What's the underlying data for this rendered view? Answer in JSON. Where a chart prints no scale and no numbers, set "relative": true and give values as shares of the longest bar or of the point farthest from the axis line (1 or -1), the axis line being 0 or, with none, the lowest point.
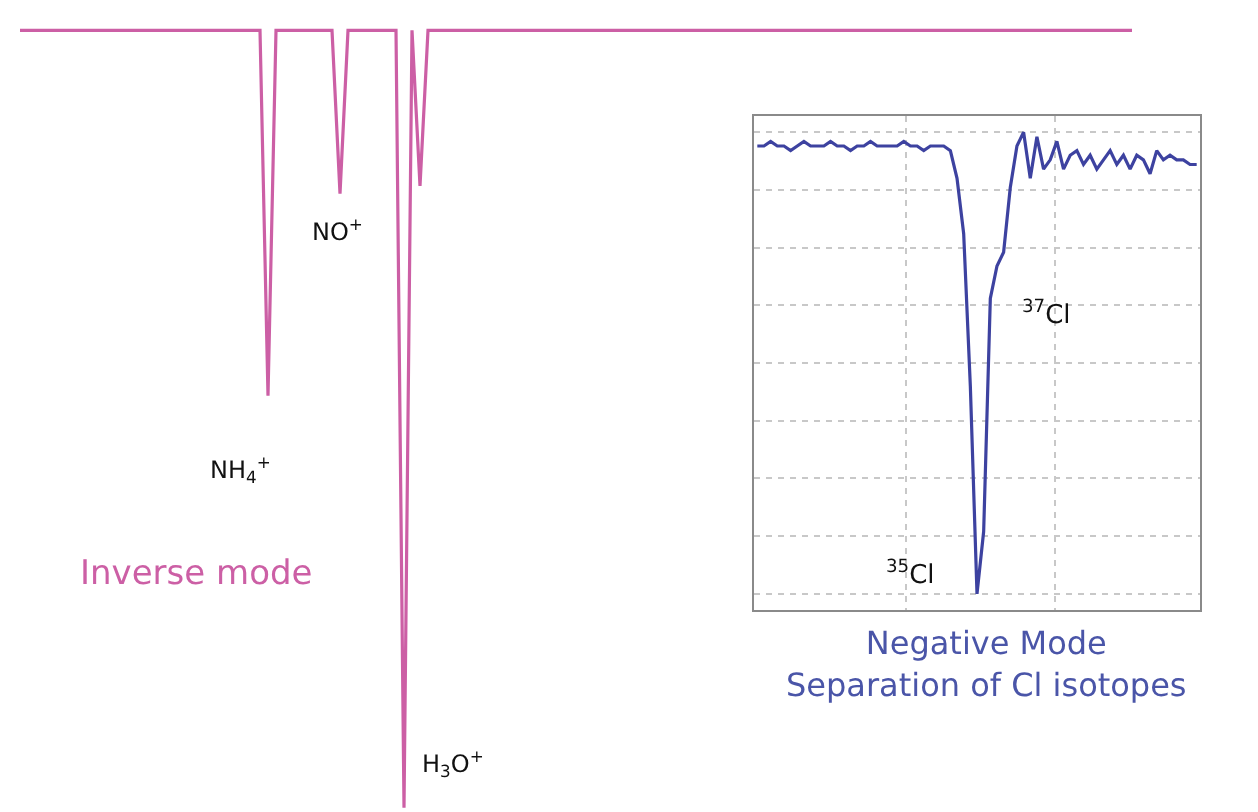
{
  "chart_data": [
    {
      "type": "line",
      "relative": true,
      "categories": [
        null,
        null,
        null,
        null,
        null,
        null,
        null,
        null,
        null,
        null,
        null,
        null,
        null,
        null,
        null,
        null,
        null,
        null,
        null,
        null,
        null,
        null,
        null,
        null,
        null,
        null,
        null,
        null,
        null,
        null,
        null,
        null,
        null,
        null,
        null,
        null,
        null,
        null,
        null,
        null,
        null,
        null,
        null,
        null,
        null,
        null,
        null,
        null,
        null,
        null,
        null,
        null,
        null,
        null,
        null,
        null,
        null,
        null,
        null,
        null,
        null,
        null,
        null,
        null,
        null,
        null,
        null,
        null,
        null,
        null,
        null,
        null,
        null,
        null,
        null,
        null,
        null,
        null,
        null,
        null,
        null,
        null,
        null,
        null,
        null,
        null,
        null,
        null,
        null,
        null,
        null,
        null,
        null,
        null,
        null,
        null,
        null,
        null,
        null,
        null,
        null,
        null,
        null,
        null,
        null,
        null,
        null,
        null,
        null,
        null,
        null,
        null,
        null,
        null,
        null,
        null,
        null,
        null,
        null,
        null,
        null,
        null,
        null,
        null,
        null,
        null,
        null,
        null,
        null,
        null,
        null,
        null,
        null,
        null,
        null,
        null,
        null,
        null,
        null,
        null
      ],
      "series": [
        {
          "color": "#cc5fa5",
          "values": [
            1,
            1,
            1,
            1,
            1,
            1,
            1,
            1,
            1,
            1,
            1,
            1,
            1,
            1,
            1,
            1,
            1,
            1,
            1,
            1,
            1,
            1,
            1,
            1,
            1,
            1,
            1,
            1,
            1,
            1,
            1,
            0.53,
            1,
            1,
            1,
            1,
            1,
            1,
            1,
            1,
            0.79,
            1,
            1,
            1,
            1,
            1,
            1,
            1,
            0,
            1,
            0.8,
            1,
            1,
            1,
            1,
            1,
            1,
            1,
            1,
            1,
            1,
            1,
            1,
            1,
            1,
            1,
            1,
            1,
            1,
            1,
            1,
            1,
            1,
            1,
            1,
            1,
            1,
            1,
            1,
            1,
            1,
            1,
            1,
            1,
            1,
            1,
            1,
            1,
            1,
            1,
            1,
            1,
            1,
            1,
            1,
            1,
            1,
            1,
            1,
            1,
            1,
            1,
            1,
            1,
            1,
            1,
            1,
            1,
            1,
            1,
            1,
            1,
            1,
            1,
            1,
            1,
            1,
            1,
            1,
            1,
            1,
            1,
            1,
            1,
            1,
            1,
            1,
            1,
            1,
            1,
            1,
            1,
            1,
            1,
            1,
            1,
            1,
            1,
            1,
            1
          ]
        }
      ],
      "annotations": [
        "NO$^{+}$",
        "NH$_{4}$$^{+}$",
        "H$_{3}$O$^{+}$",
        "Inverse mode"
      ],
      "grid": false,
      "marker": "none",
      "line_style": "solid"
    },
    {
      "type": "line",
      "relative": true,
      "title": "Negative Mode\nSeparation of Cl isotopes",
      "categories": [
        null,
        null,
        null,
        null,
        null,
        null,
        null,
        null,
        null,
        null,
        null,
        null,
        null,
        null,
        null,
        null,
        null,
        null,
        null,
        null,
        null,
        null,
        null,
        null,
        null,
        null,
        null,
        null,
        null,
        null,
        null,
        null,
        null,
        null,
        null,
        null,
        null,
        null,
        null,
        null,
        null,
        null,
        null,
        null,
        null,
        null,
        null,
        null,
        null,
        null,
        null,
        null,
        null,
        null,
        null,
        null,
        null,
        null,
        null,
        null,
        null,
        null,
        null,
        null,
        null,
        null,
        null
      ],
      "series": [
        {
          "color": "#3d42a0",
          "values": [
            0.97,
            0.97,
            0.98,
            0.97,
            0.97,
            0.96,
            0.97,
            0.98,
            0.97,
            0.97,
            0.97,
            0.98,
            0.97,
            0.97,
            0.96,
            0.97,
            0.97,
            0.98,
            0.97,
            0.97,
            0.97,
            0.97,
            0.98,
            0.97,
            0.97,
            0.96,
            0.97,
            0.97,
            0.97,
            0.96,
            0.9,
            0.78,
            0.45,
            0,
            0.135,
            0.64,
            0.71,
            0.74,
            0.88,
            0.97,
            1,
            0.9,
            0.99,
            0.92,
            0.94,
            0.98,
            0.92,
            0.95,
            0.96,
            0.93,
            0.95,
            0.92,
            0.94,
            0.96,
            0.93,
            0.95,
            0.92,
            0.95,
            0.94,
            0.91,
            0.96,
            0.94,
            0.95,
            0.94,
            0.94,
            0.93,
            0.93
          ]
        }
      ],
      "annotations": [
        "$^{37}$Cl",
        "$^{35}$Cl"
      ],
      "grid": true,
      "marker": "none",
      "line_style": "solid"
    }
  ]
}
